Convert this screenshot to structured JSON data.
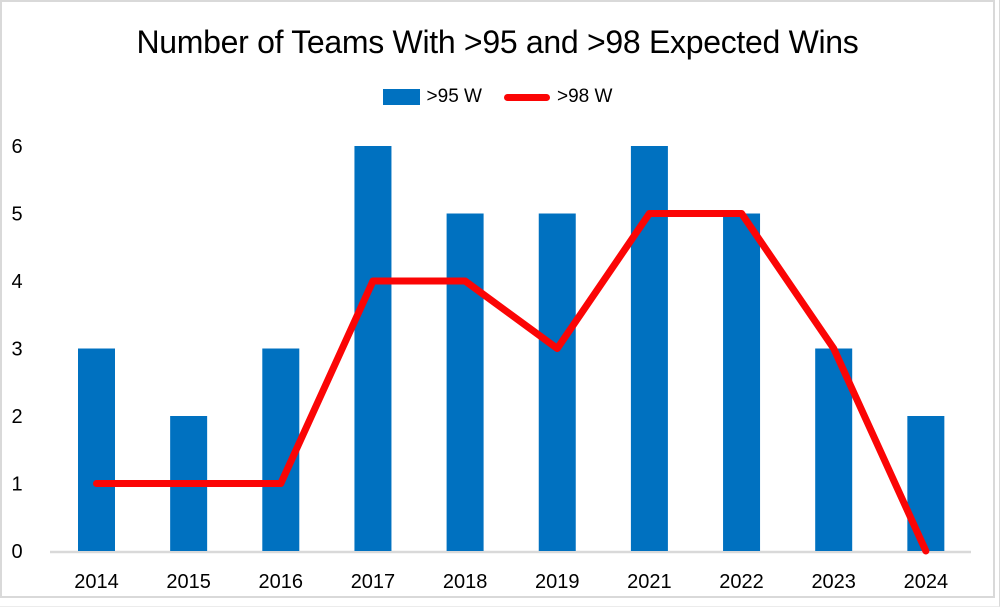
{
  "chart_data": {
    "type": "combo-bar-line",
    "title": "Number of Teams With >95 and >98 Expected Wins",
    "categories": [
      "2014",
      "2015",
      "2016",
      "2017",
      "2018",
      "2019",
      "2021",
      "2022",
      "2023",
      "2024"
    ],
    "series": [
      {
        "name": ">95 W",
        "type": "bar",
        "color": "#0071C0",
        "values": [
          3,
          2,
          3,
          6,
          5,
          5,
          6,
          5,
          3,
          2
        ]
      },
      {
        "name": ">98 W",
        "type": "line",
        "color": "#FB0505",
        "values": [
          1,
          1,
          1,
          4,
          4,
          3,
          5,
          5,
          3,
          0
        ]
      }
    ],
    "xlabel": "",
    "ylabel": "",
    "ylim": [
      0,
      6
    ],
    "yticks": [
      0,
      1,
      2,
      3,
      4,
      5,
      6
    ],
    "grid": false,
    "legend_position": "top-center",
    "axis_line_color": "#D9D9D9",
    "text_color": "#000000",
    "background": "#FFFFFF"
  }
}
